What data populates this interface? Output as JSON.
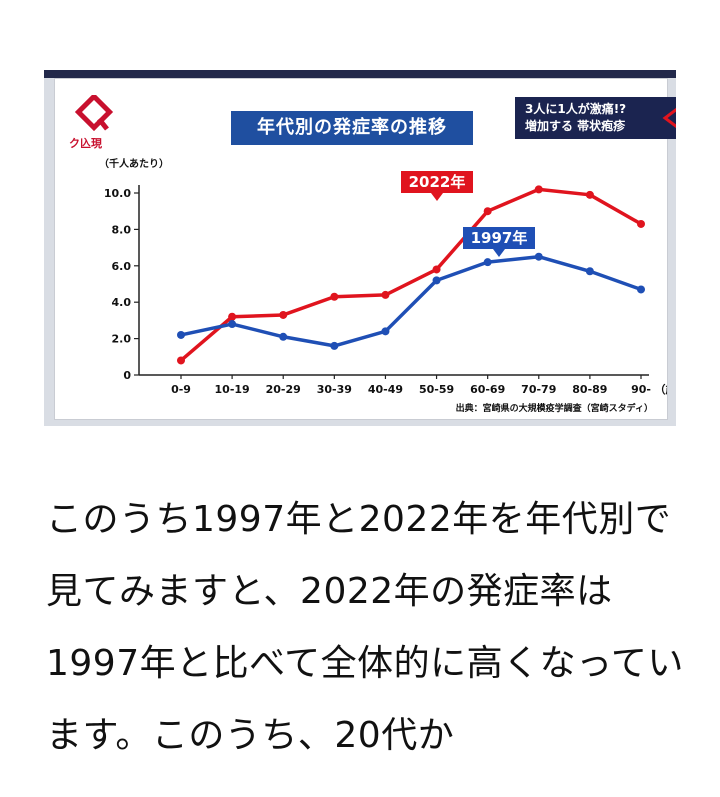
{
  "program_logo": "ク兦現",
  "banner": {
    "line1": "3人に1人が激痛!?",
    "line2": "増加する 帯状疱疹"
  },
  "colors": {
    "series_2022": "#e0141e",
    "series_1997": "#1f4fb5",
    "title_bg": "#1f4fa0",
    "banner_bg": "#1b2450"
  },
  "chart_data": {
    "type": "line",
    "title": "年代別の発症率の推移",
    "ylabel": "（千人あたり）",
    "xlabel": "（歳）",
    "categories": [
      "0-9",
      "10-19",
      "20-29",
      "30-39",
      "40-49",
      "50-59",
      "60-69",
      "70-79",
      "80-89",
      "90-"
    ],
    "ylim": [
      0,
      10.0
    ],
    "yticks": [
      "0",
      "2.0",
      "4.0",
      "6.0",
      "8.0",
      "10.0"
    ],
    "series": [
      {
        "name": "2022年",
        "values": [
          0.8,
          3.2,
          3.3,
          4.3,
          4.4,
          5.8,
          9.0,
          10.2,
          9.9,
          8.3
        ]
      },
      {
        "name": "1997年",
        "values": [
          2.2,
          2.8,
          2.1,
          1.6,
          2.4,
          5.2,
          6.2,
          6.5,
          5.7,
          4.7
        ]
      }
    ],
    "source": "出典：宮崎県の大規模疫学調査（宮崎スタディ）"
  },
  "caption": "このうち1997年と2022年を年代別で見てみますと、2022年の発症率は1997年と比べて全体的に高くなっています。このうち、20代か"
}
